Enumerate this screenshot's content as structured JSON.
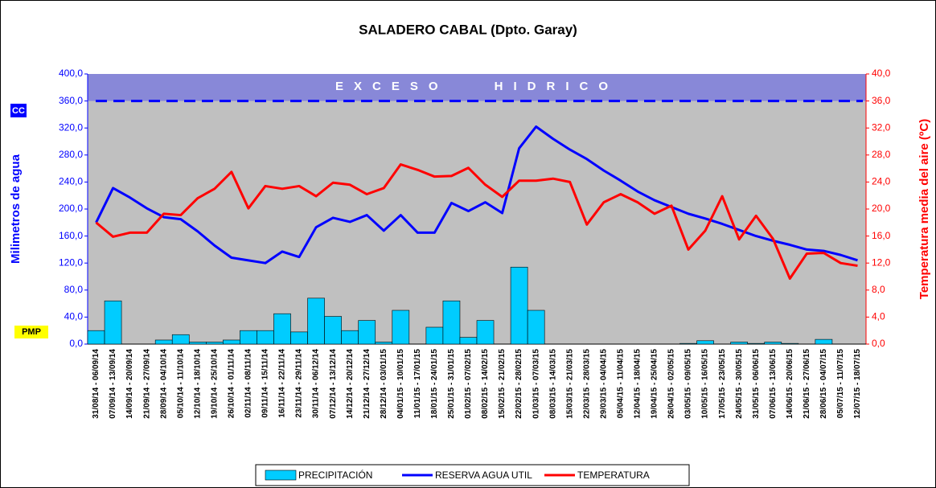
{
  "chart_data": {
    "type": "combo",
    "title": "SALADERO CABAL (Dpto. Garay)",
    "y_label": "Milimetros de agua",
    "y2_label": "Temperatura media del aire (ºC)",
    "annotations": {
      "excess": "EXCESO HIDRICO",
      "cc": "CC",
      "pmp": "PMP"
    },
    "excess_zone": [
      360,
      400
    ],
    "cc_level": 360,
    "categories": [
      "31/08/14 - 06/09/14",
      "07/09/14 - 13/09/14",
      "14/09/14 - 20/09/14",
      "21/09/14 - 27/09/14",
      "28/09/14 - 04/10/14",
      "05/10/14 - 11/10/14",
      "12/10/14 - 18/10/14",
      "19/10/14 - 25/10/14",
      "26/10/14 - 01/11/14",
      "02/11/14 - 08/11/14",
      "09/11/14 - 15/11/14",
      "16/11/14 - 22/11/14",
      "23/11/14 - 29/11/14",
      "30/11/14 - 06/12/14",
      "07/12/14 - 13/12/14",
      "14/12/14 - 20/12/14",
      "21/12/14 - 27/12/14",
      "28/12/14 - 03/01/15",
      "04/01/15 - 10/01/15",
      "11/01/15 - 17/01/15",
      "18/01/15 - 24/01/15",
      "25/01/15 - 31/01/15",
      "01/02/15 - 07/02/15",
      "08/02/15 - 14/02/15",
      "15/02/15 - 21/02/15",
      "22/02/15 - 28/02/15",
      "01/03/15 - 07/03/15",
      "08/03/15 - 14/03/15",
      "15/03/15 - 21/03/15",
      "22/03/15 - 28/03/15",
      "29/03/15 - 04/04/15",
      "05/04/15 - 11/04/15",
      "12/04/15 - 18/04/15",
      "19/04/15 - 25/04/15",
      "26/04/15 - 02/05/15",
      "03/05/15 - 09/05/15",
      "10/05/15 - 16/05/15",
      "17/05/15 - 23/05/15",
      "24/05/15 - 30/05/15",
      "31/05/15 - 06/06/15",
      "07/06/15 - 13/06/15",
      "14/06/15 - 20/06/15",
      "21/06/15 - 27/06/15",
      "28/06/15 - 04/07/15",
      "05/07/15 - 11/07/15",
      "12/07/15 - 18/07/15"
    ],
    "series": [
      {
        "name": "PRECIPITACIÓN",
        "type": "bar",
        "color": "#00ccff",
        "values": [
          20,
          64,
          0,
          0,
          6,
          14,
          3,
          3,
          6,
          20,
          20,
          45,
          18,
          68,
          41,
          20,
          35,
          3,
          50,
          0,
          25,
          64,
          10,
          35,
          0,
          114,
          50,
          0,
          0,
          0,
          0,
          0,
          0,
          0,
          0,
          1,
          5,
          0,
          3,
          1,
          3,
          1,
          0,
          7,
          0,
          0
        ]
      },
      {
        "name": "RESERVA AGUA UTIL",
        "type": "line",
        "color": "#0000ff",
        "values": [
          180,
          231,
          217,
          201,
          188,
          185,
          167,
          146,
          128,
          124,
          120,
          137,
          129,
          173,
          187,
          181,
          191,
          168,
          191,
          165,
          165,
          209,
          197,
          210,
          194,
          290,
          322,
          304,
          288,
          274,
          257,
          242,
          226,
          213,
          203,
          193,
          186,
          178,
          169,
          160,
          153,
          147,
          140,
          138,
          132,
          124
        ]
      },
      {
        "name": "TEMPERATURA",
        "type": "line",
        "axis": "y2",
        "color": "#ff0000",
        "values": [
          18.0,
          15.9,
          16.5,
          16.5,
          19.3,
          19.1,
          21.6,
          23.0,
          25.5,
          20.1,
          23.4,
          23.0,
          23.4,
          21.9,
          23.9,
          23.6,
          22.2,
          23.1,
          26.6,
          25.8,
          24.8,
          24.9,
          26.1,
          23.6,
          21.8,
          24.2,
          24.2,
          24.5,
          24.0,
          17.7,
          21.0,
          22.2,
          21.0,
          19.3,
          20.5,
          14.0,
          16.8,
          21.9,
          15.5,
          19.0,
          15.6,
          9.7,
          13.4,
          13.5,
          12.0,
          11.6
        ]
      }
    ],
    "ylim": [
      0,
      400
    ],
    "yticks": [
      {
        "value": 0,
        "label": "0,0"
      },
      {
        "value": 40,
        "label": "40,0"
      },
      {
        "value": 80,
        "label": "80,0"
      },
      {
        "value": 120,
        "label": "120,0"
      },
      {
        "value": 160,
        "label": "160,0"
      },
      {
        "value": 200,
        "label": "200,0"
      },
      {
        "value": 240,
        "label": "240,0"
      },
      {
        "value": 280,
        "label": "280,0"
      },
      {
        "value": 320,
        "label": "320,0"
      },
      {
        "value": 360,
        "label": "360,0"
      },
      {
        "value": 400,
        "label": "400,0"
      }
    ],
    "y2lim": [
      0,
      40
    ],
    "y2ticks": [
      {
        "value": 0,
        "label": "0,0"
      },
      {
        "value": 4,
        "label": "4,0"
      },
      {
        "value": 8,
        "label": "8,0"
      },
      {
        "value": 12,
        "label": "12,0"
      },
      {
        "value": 16,
        "label": "16,0"
      },
      {
        "value": 20,
        "label": "20,0"
      },
      {
        "value": 24,
        "label": "24,0"
      },
      {
        "value": 28,
        "label": "28,0"
      },
      {
        "value": 32,
        "label": "32,0"
      },
      {
        "value": 36,
        "label": "36,0"
      },
      {
        "value": 40,
        "label": "40,0"
      }
    ],
    "grid": false,
    "legend": "bottom"
  }
}
